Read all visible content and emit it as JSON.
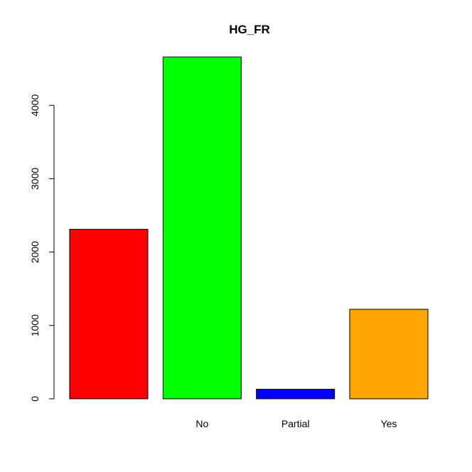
{
  "chart_data": {
    "type": "bar",
    "title": "HG_FR",
    "xlabel": "",
    "ylabel": "",
    "categories": [
      "",
      "No",
      "Partial",
      "Yes"
    ],
    "values": [
      2310,
      4660,
      130,
      1220
    ],
    "colors": [
      "#ff0000",
      "#00ff00",
      "#0000ff",
      "#ffa500"
    ],
    "ylim": [
      0,
      4660
    ],
    "y_ticks": [
      0,
      1000,
      2000,
      3000,
      4000
    ],
    "y_tick_labels": [
      "0",
      "1000",
      "2000",
      "3000",
      "4000"
    ],
    "grid": false,
    "legend": "none"
  }
}
